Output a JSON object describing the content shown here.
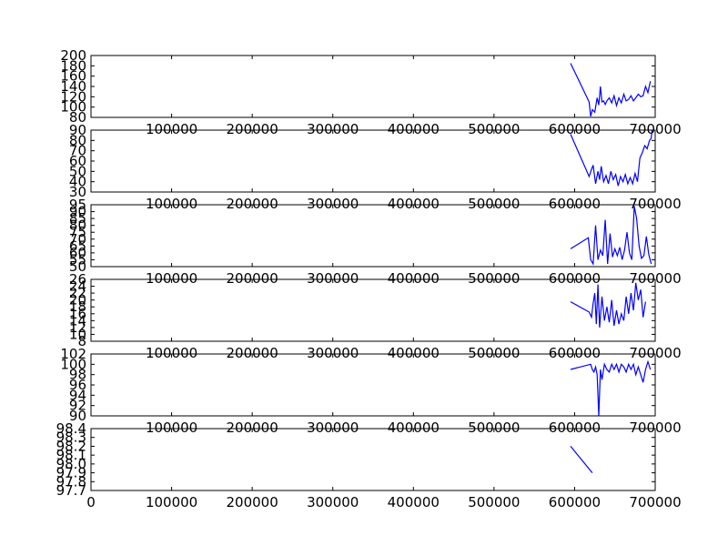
{
  "chart_data": [
    {
      "type": "line",
      "title": "",
      "xlabel": "",
      "ylabel": "",
      "xlim": [
        0,
        700000
      ],
      "ylim": [
        80,
        200
      ],
      "yticks": [
        80,
        100,
        120,
        140,
        160,
        180,
        200
      ],
      "xticks": [
        100000,
        200000,
        300000,
        400000,
        500000,
        600000,
        700000
      ],
      "show_xtick_labels": true,
      "series": [
        {
          "color": "#0000ff",
          "x": [
            595000,
            618000,
            620000,
            622000,
            625000,
            628000,
            630000,
            632000,
            634000,
            636000,
            638000,
            640000,
            643000,
            646000,
            649000,
            652000,
            655000,
            658000,
            661000,
            664000,
            667000,
            670000,
            673000,
            676000,
            679000,
            682000,
            685000,
            688000,
            691000,
            694000
          ],
          "y": [
            185,
            110,
            82,
            95,
            90,
            118,
            104,
            140,
            110,
            112,
            105,
            112,
            118,
            108,
            122,
            103,
            118,
            108,
            125,
            112,
            115,
            122,
            112,
            118,
            125,
            120,
            122,
            140,
            128,
            150
          ]
        }
      ]
    },
    {
      "type": "line",
      "title": "",
      "xlabel": "",
      "ylabel": "",
      "xlim": [
        0,
        700000
      ],
      "ylim": [
        30,
        90
      ],
      "yticks": [
        30,
        40,
        50,
        60,
        70,
        80,
        90
      ],
      "xticks": [
        100000,
        200000,
        300000,
        400000,
        500000,
        600000,
        700000
      ],
      "show_xtick_labels": true,
      "series": [
        {
          "color": "#0000ff",
          "x": [
            595000,
            618000,
            621000,
            623000,
            626000,
            629000,
            631000,
            633000,
            636000,
            639000,
            642000,
            645000,
            648000,
            651000,
            654000,
            657000,
            660000,
            663000,
            666000,
            669000,
            672000,
            675000,
            678000,
            681000,
            684000,
            687000,
            690000,
            693000,
            695000,
            696000
          ],
          "y": [
            86,
            45,
            52,
            56,
            38,
            50,
            42,
            55,
            40,
            46,
            38,
            50,
            42,
            47,
            36,
            45,
            40,
            47,
            38,
            44,
            38,
            48,
            40,
            63,
            68,
            75,
            72,
            80,
            82,
            90
          ]
        }
      ]
    },
    {
      "type": "line",
      "title": "",
      "xlabel": "",
      "ylabel": "",
      "xlim": [
        0,
        700000
      ],
      "ylim": [
        50,
        95
      ],
      "yticks": [
        50,
        55,
        60,
        65,
        70,
        75,
        80,
        85,
        90,
        95
      ],
      "xticks": [
        100000,
        200000,
        300000,
        400000,
        500000,
        600000,
        700000
      ],
      "show_xtick_labels": true,
      "series": [
        {
          "color": "#0000ff",
          "x": [
            595000,
            617000,
            620000,
            623000,
            626000,
            629000,
            632000,
            635000,
            638000,
            641000,
            644000,
            647000,
            650000,
            653000,
            656000,
            659000,
            662000,
            665000,
            668000,
            671000,
            674000,
            677000,
            680000,
            683000,
            686000,
            689000,
            692000,
            695000
          ],
          "y": [
            63,
            71,
            55,
            52,
            80,
            55,
            62,
            58,
            84,
            52,
            74,
            57,
            63,
            58,
            64,
            55,
            62,
            75,
            60,
            55,
            94,
            85,
            65,
            56,
            58,
            72,
            59,
            52
          ]
        }
      ]
    },
    {
      "type": "line",
      "title": "",
      "xlabel": "",
      "ylabel": "",
      "xlim": [
        0,
        700000
      ],
      "ylim": [
        8,
        26
      ],
      "yticks": [
        8,
        10,
        12,
        14,
        16,
        18,
        20,
        22,
        24,
        26
      ],
      "xticks": [
        100000,
        200000,
        300000,
        400000,
        500000,
        600000,
        700000
      ],
      "show_xtick_labels": true,
      "series": [
        {
          "color": "#0000ff",
          "x": [
            595000,
            618000,
            621000,
            623000,
            625000,
            627000,
            629000,
            631000,
            634000,
            637000,
            640000,
            643000,
            646000,
            649000,
            652000,
            655000,
            658000,
            661000,
            664000,
            667000,
            670000,
            673000,
            676000,
            679000,
            682000,
            685000,
            688000
          ],
          "y": [
            19.5,
            16.5,
            15,
            19,
            22,
            13,
            24.5,
            12,
            21,
            14,
            18,
            13.5,
            20,
            12.5,
            17,
            13,
            16,
            14,
            21,
            16,
            22,
            17,
            25,
            20,
            23,
            15,
            19.5
          ]
        }
      ]
    },
    {
      "type": "line",
      "title": "",
      "xlabel": "",
      "ylabel": "",
      "xlim": [
        0,
        700000
      ],
      "ylim": [
        90,
        102
      ],
      "yticks": [
        90,
        92,
        94,
        96,
        98,
        100,
        102
      ],
      "xticks": [
        100000,
        200000,
        300000,
        400000,
        500000,
        600000,
        700000
      ],
      "show_xtick_labels": true,
      "series": [
        {
          "color": "#0000ff",
          "x": [
            595000,
            620000,
            622000,
            624000,
            626000,
            628000,
            630000,
            632000,
            634000,
            637000,
            640000,
            643000,
            646000,
            649000,
            652000,
            655000,
            658000,
            661000,
            664000,
            667000,
            670000,
            673000,
            676000,
            679000,
            682000,
            685000,
            688000,
            691000,
            694000
          ],
          "y": [
            99,
            100,
            99,
            98.5,
            99.5,
            98,
            90,
            99,
            97,
            100,
            99,
            98.5,
            100,
            99,
            100,
            98.5,
            100,
            99.5,
            98.5,
            100,
            99,
            100,
            98,
            99.5,
            98,
            96.5,
            99,
            100.5,
            99
          ]
        }
      ]
    },
    {
      "type": "line",
      "title": "",
      "xlabel": "",
      "ylabel": "",
      "xlim": [
        0,
        700000
      ],
      "ylim": [
        97.7,
        98.4
      ],
      "yticks": [
        97.7,
        97.8,
        97.9,
        98.0,
        98.1,
        98.2,
        98.3,
        98.4
      ],
      "xticks": [
        0,
        100000,
        200000,
        300000,
        400000,
        500000,
        600000,
        700000
      ],
      "show_xtick_labels": true,
      "series": [
        {
          "color": "#0000ff",
          "x": [
            595000,
            622000
          ],
          "y": [
            98.2,
            97.9
          ]
        }
      ]
    }
  ]
}
